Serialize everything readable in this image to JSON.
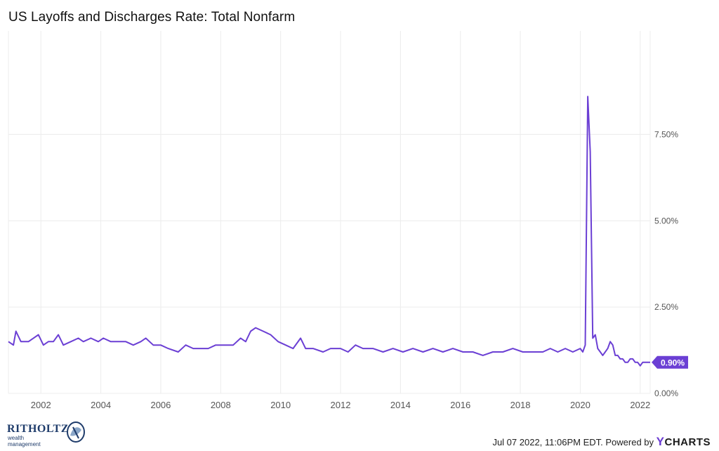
{
  "title": "US Layoffs and Discharges Rate: Total Nonfarm",
  "footer": {
    "timestamp": "Jul 07 2022, 11:06PM EDT.",
    "powered_by": "Powered by",
    "brand": "CHARTS",
    "brand_initial": "Y"
  },
  "logo": {
    "name": "RITHOLTZ",
    "tagline": "wealth management"
  },
  "colors": {
    "series": "#6b3fd4",
    "grid": "#ececec",
    "axis_text": "#555555"
  },
  "chart_data": {
    "type": "line",
    "title": "US Layoffs and Discharges Rate: Total Nonfarm",
    "xlim": [
      "2000-12",
      "2022-05"
    ],
    "ylim": [
      0,
      10.5
    ],
    "x_ticks": [
      "2002",
      "2004",
      "2006",
      "2008",
      "2010",
      "2012",
      "2014",
      "2016",
      "2018",
      "2020",
      "2022"
    ],
    "y_ticks": [
      "0.00%",
      "2.50%",
      "5.00%",
      "7.50%"
    ],
    "y_tick_values": [
      0,
      2.5,
      5.0,
      7.5
    ],
    "grid": true,
    "last_value_label": "0.90%",
    "series": [
      {
        "points": [
          [
            "2000-12",
            1.5
          ],
          [
            "2001-02",
            1.4
          ],
          [
            "2001-03",
            1.8
          ],
          [
            "2001-05",
            1.5
          ],
          [
            "2001-08",
            1.5
          ],
          [
            "2001-10",
            1.6
          ],
          [
            "2001-12",
            1.7
          ],
          [
            "2002-02",
            1.4
          ],
          [
            "2002-04",
            1.5
          ],
          [
            "2002-06",
            1.5
          ],
          [
            "2002-08",
            1.7
          ],
          [
            "2002-10",
            1.4
          ],
          [
            "2003-01",
            1.5
          ],
          [
            "2003-04",
            1.6
          ],
          [
            "2003-06",
            1.5
          ],
          [
            "2003-09",
            1.6
          ],
          [
            "2003-12",
            1.5
          ],
          [
            "2004-02",
            1.6
          ],
          [
            "2004-05",
            1.5
          ],
          [
            "2004-08",
            1.5
          ],
          [
            "2004-11",
            1.5
          ],
          [
            "2005-02",
            1.4
          ],
          [
            "2005-05",
            1.5
          ],
          [
            "2005-07",
            1.6
          ],
          [
            "2005-10",
            1.4
          ],
          [
            "2006-01",
            1.4
          ],
          [
            "2006-04",
            1.3
          ],
          [
            "2006-08",
            1.2
          ],
          [
            "2006-11",
            1.4
          ],
          [
            "2007-02",
            1.3
          ],
          [
            "2007-05",
            1.3
          ],
          [
            "2007-08",
            1.3
          ],
          [
            "2007-11",
            1.4
          ],
          [
            "2008-02",
            1.4
          ],
          [
            "2008-06",
            1.4
          ],
          [
            "2008-09",
            1.6
          ],
          [
            "2008-11",
            1.5
          ],
          [
            "2009-01",
            1.8
          ],
          [
            "2009-03",
            1.9
          ],
          [
            "2009-06",
            1.8
          ],
          [
            "2009-09",
            1.7
          ],
          [
            "2009-12",
            1.5
          ],
          [
            "2010-03",
            1.4
          ],
          [
            "2010-06",
            1.3
          ],
          [
            "2010-09",
            1.6
          ],
          [
            "2010-11",
            1.3
          ],
          [
            "2011-02",
            1.3
          ],
          [
            "2011-06",
            1.2
          ],
          [
            "2011-09",
            1.3
          ],
          [
            "2012-01",
            1.3
          ],
          [
            "2012-04",
            1.2
          ],
          [
            "2012-07",
            1.4
          ],
          [
            "2012-10",
            1.3
          ],
          [
            "2013-02",
            1.3
          ],
          [
            "2013-06",
            1.2
          ],
          [
            "2013-10",
            1.3
          ],
          [
            "2014-02",
            1.2
          ],
          [
            "2014-06",
            1.3
          ],
          [
            "2014-10",
            1.2
          ],
          [
            "2015-02",
            1.3
          ],
          [
            "2015-06",
            1.2
          ],
          [
            "2015-10",
            1.3
          ],
          [
            "2016-02",
            1.2
          ],
          [
            "2016-06",
            1.2
          ],
          [
            "2016-10",
            1.1
          ],
          [
            "2017-02",
            1.2
          ],
          [
            "2017-06",
            1.2
          ],
          [
            "2017-10",
            1.3
          ],
          [
            "2018-02",
            1.2
          ],
          [
            "2018-06",
            1.2
          ],
          [
            "2018-10",
            1.2
          ],
          [
            "2019-01",
            1.3
          ],
          [
            "2019-04",
            1.2
          ],
          [
            "2019-07",
            1.3
          ],
          [
            "2019-10",
            1.2
          ],
          [
            "2020-01",
            1.3
          ],
          [
            "2020-02",
            1.2
          ],
          [
            "2020-03",
            1.4
          ],
          [
            "2020-04",
            8.6
          ],
          [
            "2020-05",
            7.0
          ],
          [
            "2020-06",
            1.6
          ],
          [
            "2020-07",
            1.7
          ],
          [
            "2020-08",
            1.3
          ],
          [
            "2020-09",
            1.2
          ],
          [
            "2020-10",
            1.1
          ],
          [
            "2020-11",
            1.2
          ],
          [
            "2020-12",
            1.3
          ],
          [
            "2021-01",
            1.5
          ],
          [
            "2021-02",
            1.4
          ],
          [
            "2021-03",
            1.1
          ],
          [
            "2021-04",
            1.1
          ],
          [
            "2021-05",
            1.0
          ],
          [
            "2021-06",
            1.0
          ],
          [
            "2021-07",
            0.9
          ],
          [
            "2021-08",
            0.9
          ],
          [
            "2021-09",
            1.0
          ],
          [
            "2021-10",
            1.0
          ],
          [
            "2021-11",
            0.9
          ],
          [
            "2021-12",
            0.9
          ],
          [
            "2022-01",
            0.8
          ],
          [
            "2022-02",
            0.9
          ],
          [
            "2022-03",
            0.9
          ],
          [
            "2022-04",
            0.9
          ],
          [
            "2022-05",
            0.9
          ]
        ]
      }
    ]
  }
}
